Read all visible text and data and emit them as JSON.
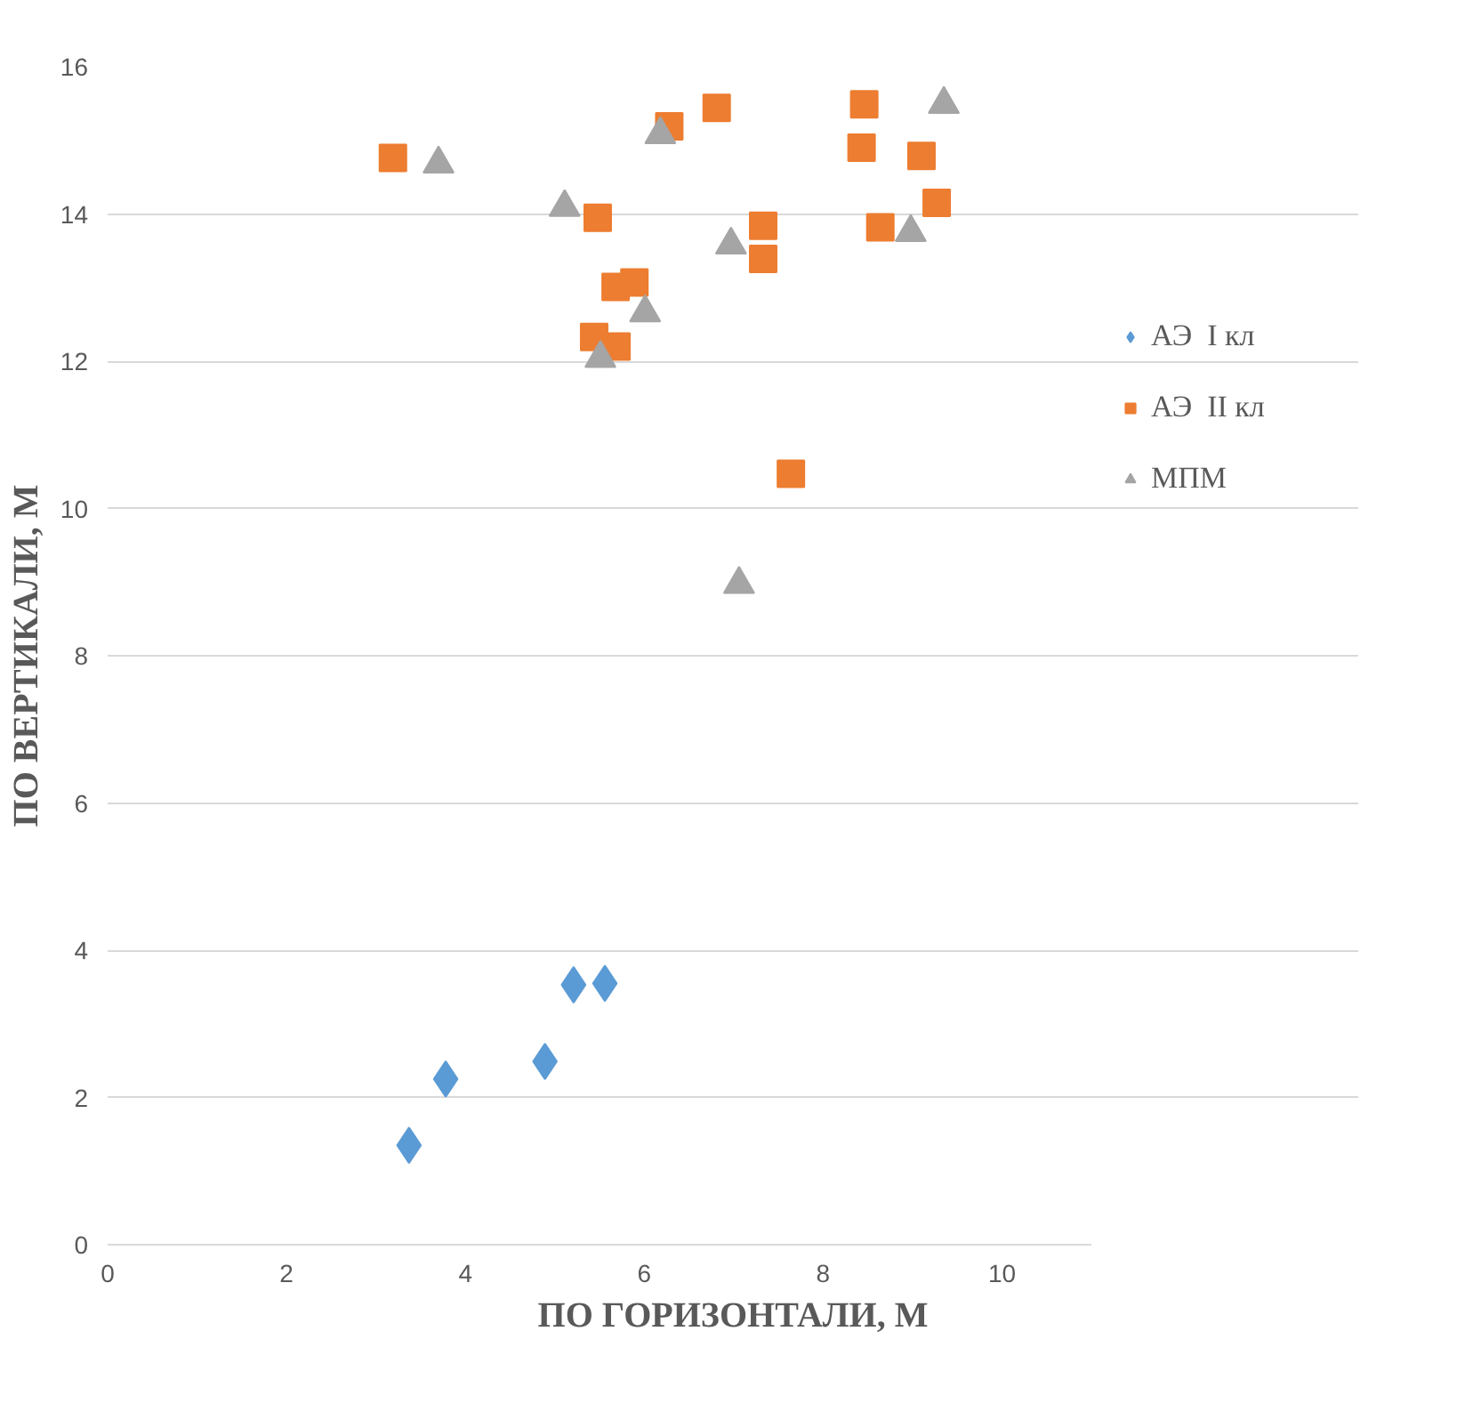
{
  "chart_data": {
    "type": "scatter",
    "xlabel": "ПО ГОРИЗОНТАЛИ, М",
    "ylabel": "ПО ВЕРТИКАЛИ, М",
    "xlim": [
      0,
      11
    ],
    "xticks": [
      0,
      2,
      4,
      6,
      8,
      10
    ],
    "ylim": [
      0,
      16
    ],
    "yticks": [
      0,
      2,
      4,
      6,
      8,
      10,
      12,
      14,
      16
    ],
    "grid": "y",
    "legend": "right",
    "series": [
      {
        "name": "АЭ  I кл",
        "color": "#5b9bd5",
        "marker": "diamond",
        "x": [
          3.37,
          3.78,
          4.89,
          5.21,
          5.56
        ],
        "values": [
          1.35,
          2.25,
          2.49,
          3.53,
          3.55
        ]
      },
      {
        "name": "АЭ  II кл",
        "color": "#ed7d31",
        "marker": "square",
        "x": [
          3.19,
          6.28,
          6.81,
          8.46,
          8.43,
          9.1,
          9.27,
          8.64,
          7.33,
          7.33,
          5.48,
          5.68,
          5.89,
          5.44,
          5.69,
          7.64
        ],
        "values": [
          14.76,
          15.19,
          15.44,
          15.49,
          14.9,
          14.79,
          14.15,
          13.82,
          13.84,
          13.39,
          13.95,
          13.01,
          13.07,
          12.33,
          12.2,
          10.47
        ]
      },
      {
        "name": "МПМ",
        "color": "#a5a5a5",
        "marker": "triangle",
        "x": [
          3.7,
          6.18,
          9.35,
          5.11,
          6.97,
          8.98,
          6.01,
          5.51,
          7.06
        ],
        "values": [
          14.68,
          15.08,
          15.49,
          14.09,
          13.58,
          13.75,
          12.66,
          12.04,
          8.97
        ]
      }
    ]
  }
}
